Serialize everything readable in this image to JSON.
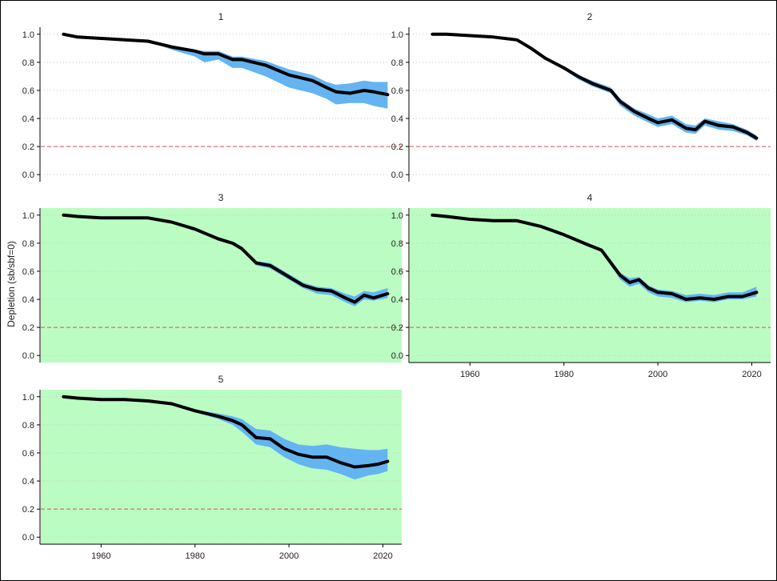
{
  "chart_data": {
    "type": "area",
    "ylabel": "Depletion (sb/sbf=0)",
    "xlabel": "",
    "xlim": [
      1947,
      2024
    ],
    "ylim": [
      -0.05,
      1.05
    ],
    "x_ticks": [
      "1960",
      "1980",
      "2000",
      "2020"
    ],
    "y_ticks": [
      "0.0",
      "0.2",
      "0.4",
      "0.6",
      "0.8",
      "1.0"
    ],
    "reference_line": {
      "y": 0.2,
      "style": "dashed",
      "color": "#d9534f"
    },
    "colors": {
      "band": "#64b4f2",
      "line": "#000000",
      "highlight_bg": "#bbfcc2",
      "grid": "#c8c8c8"
    },
    "panels": [
      {
        "label": "1",
        "highlight": false,
        "x": [
          1952,
          1955,
          1960,
          1965,
          1970,
          1975,
          1980,
          1982,
          1985,
          1988,
          1990,
          1995,
          2000,
          2005,
          2008,
          2010,
          2013,
          2016,
          2018,
          2021
        ],
        "median": [
          1.0,
          0.98,
          0.97,
          0.96,
          0.95,
          0.91,
          0.88,
          0.86,
          0.86,
          0.82,
          0.82,
          0.78,
          0.71,
          0.67,
          0.62,
          0.59,
          0.58,
          0.6,
          0.59,
          0.57
        ],
        "lower": [
          1.0,
          0.98,
          0.97,
          0.96,
          0.95,
          0.89,
          0.84,
          0.8,
          0.82,
          0.76,
          0.76,
          0.7,
          0.62,
          0.58,
          0.54,
          0.5,
          0.51,
          0.51,
          0.49,
          0.47
        ],
        "upper": [
          1.0,
          0.98,
          0.97,
          0.96,
          0.95,
          0.92,
          0.89,
          0.88,
          0.88,
          0.84,
          0.84,
          0.81,
          0.75,
          0.71,
          0.66,
          0.64,
          0.65,
          0.67,
          0.66,
          0.66
        ]
      },
      {
        "label": "2",
        "highlight": false,
        "x": [
          1952,
          1955,
          1960,
          1965,
          1970,
          1973,
          1976,
          1980,
          1983,
          1986,
          1990,
          1992,
          1995,
          1998,
          2000,
          2003,
          2006,
          2008,
          2010,
          2013,
          2016,
          2019,
          2021
        ],
        "median": [
          1.0,
          1.0,
          0.99,
          0.98,
          0.96,
          0.9,
          0.83,
          0.76,
          0.7,
          0.65,
          0.6,
          0.52,
          0.45,
          0.4,
          0.37,
          0.39,
          0.33,
          0.32,
          0.38,
          0.35,
          0.34,
          0.3,
          0.26
        ],
        "lower": [
          1.0,
          1.0,
          0.99,
          0.98,
          0.96,
          0.89,
          0.82,
          0.75,
          0.68,
          0.63,
          0.58,
          0.49,
          0.42,
          0.37,
          0.34,
          0.36,
          0.3,
          0.29,
          0.35,
          0.32,
          0.31,
          0.28,
          0.24
        ],
        "upper": [
          1.0,
          1.0,
          0.99,
          0.98,
          0.96,
          0.91,
          0.84,
          0.77,
          0.71,
          0.67,
          0.62,
          0.54,
          0.47,
          0.43,
          0.4,
          0.42,
          0.36,
          0.35,
          0.4,
          0.38,
          0.36,
          0.32,
          0.28
        ]
      },
      {
        "label": "3",
        "highlight": true,
        "x": [
          1952,
          1955,
          1960,
          1965,
          1970,
          1975,
          1980,
          1985,
          1988,
          1990,
          1993,
          1996,
          2000,
          2003,
          2006,
          2009,
          2012,
          2014,
          2016,
          2018,
          2021
        ],
        "median": [
          1.0,
          0.99,
          0.98,
          0.98,
          0.98,
          0.95,
          0.9,
          0.83,
          0.8,
          0.76,
          0.66,
          0.64,
          0.56,
          0.5,
          0.47,
          0.46,
          0.41,
          0.38,
          0.43,
          0.41,
          0.44
        ],
        "lower": [
          1.0,
          0.99,
          0.98,
          0.98,
          0.98,
          0.95,
          0.9,
          0.83,
          0.8,
          0.75,
          0.64,
          0.62,
          0.54,
          0.48,
          0.44,
          0.43,
          0.38,
          0.35,
          0.4,
          0.39,
          0.41
        ],
        "upper": [
          1.0,
          0.99,
          0.98,
          0.98,
          0.98,
          0.95,
          0.9,
          0.83,
          0.81,
          0.77,
          0.67,
          0.66,
          0.58,
          0.52,
          0.49,
          0.48,
          0.44,
          0.42,
          0.46,
          0.45,
          0.48
        ]
      },
      {
        "label": "4",
        "highlight": true,
        "x": [
          1952,
          1955,
          1960,
          1965,
          1970,
          1975,
          1980,
          1985,
          1988,
          1990,
          1992,
          1994,
          1996,
          1998,
          2000,
          2003,
          2006,
          2009,
          2012,
          2015,
          2018,
          2021
        ],
        "median": [
          1.0,
          0.99,
          0.97,
          0.96,
          0.96,
          0.92,
          0.86,
          0.79,
          0.75,
          0.66,
          0.57,
          0.52,
          0.54,
          0.48,
          0.45,
          0.44,
          0.4,
          0.41,
          0.4,
          0.42,
          0.42,
          0.45
        ],
        "lower": [
          1.0,
          0.99,
          0.97,
          0.96,
          0.96,
          0.92,
          0.86,
          0.78,
          0.74,
          0.64,
          0.54,
          0.49,
          0.51,
          0.45,
          0.42,
          0.41,
          0.38,
          0.39,
          0.38,
          0.4,
          0.4,
          0.42
        ],
        "upper": [
          1.0,
          0.99,
          0.97,
          0.96,
          0.96,
          0.92,
          0.86,
          0.8,
          0.76,
          0.68,
          0.59,
          0.55,
          0.56,
          0.5,
          0.47,
          0.46,
          0.43,
          0.44,
          0.43,
          0.45,
          0.45,
          0.49
        ]
      },
      {
        "label": "5",
        "highlight": true,
        "x": [
          1952,
          1955,
          1960,
          1965,
          1970,
          1975,
          1980,
          1985,
          1988,
          1990,
          1993,
          1996,
          1999,
          2002,
          2005,
          2008,
          2011,
          2014,
          2017,
          2019,
          2021
        ],
        "median": [
          1.0,
          0.99,
          0.98,
          0.98,
          0.97,
          0.95,
          0.9,
          0.86,
          0.83,
          0.8,
          0.71,
          0.7,
          0.63,
          0.59,
          0.57,
          0.57,
          0.53,
          0.5,
          0.51,
          0.52,
          0.54
        ],
        "lower": [
          1.0,
          0.99,
          0.98,
          0.98,
          0.97,
          0.95,
          0.89,
          0.84,
          0.8,
          0.75,
          0.66,
          0.64,
          0.57,
          0.52,
          0.49,
          0.48,
          0.45,
          0.41,
          0.44,
          0.45,
          0.47
        ],
        "upper": [
          1.0,
          0.99,
          0.98,
          0.98,
          0.97,
          0.95,
          0.91,
          0.88,
          0.86,
          0.84,
          0.77,
          0.76,
          0.7,
          0.66,
          0.65,
          0.66,
          0.64,
          0.63,
          0.62,
          0.62,
          0.63
        ]
      }
    ]
  }
}
